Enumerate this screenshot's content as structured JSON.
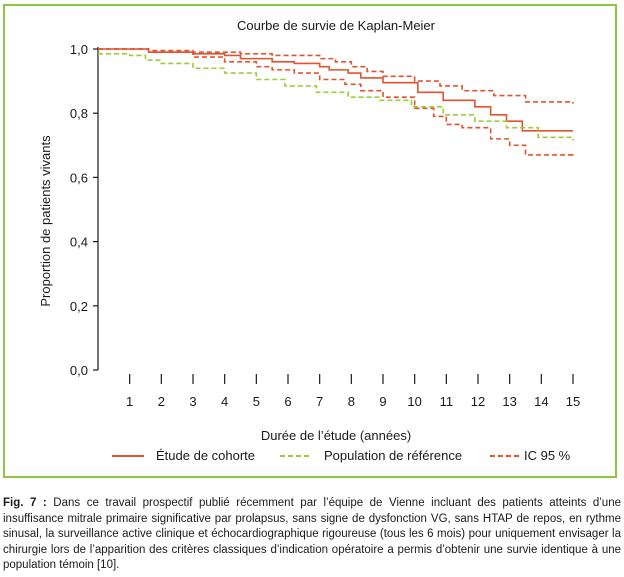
{
  "colors": {
    "frame": "#8dc63f",
    "cohort": "#e0532f",
    "reference": "#9ccc3a",
    "ci": "#e0532f",
    "axis": "#1a1a1a"
  },
  "chart_data": {
    "type": "line",
    "title": "Courbe de survie de Kaplan-Meier",
    "xlabel": "Durée de l’étude (années)",
    "ylabel": "Proportion de patients vivants",
    "xlim": [
      0,
      15
    ],
    "ylim": [
      0,
      1
    ],
    "x_ticks": [
      "1",
      "2",
      "3",
      "4",
      "5",
      "6",
      "7",
      "8",
      "9",
      "10",
      "11",
      "12",
      "13",
      "14",
      "15"
    ],
    "y_ticks": [
      "0,0",
      "0,2",
      "0,4",
      "0,6",
      "0,8",
      "1,0"
    ],
    "grid": false,
    "legend_position": "bottom",
    "series": [
      {
        "name": "Étude de cohorte",
        "style": "solid",
        "x": [
          0,
          1.3,
          1.6,
          3.0,
          4.0,
          4.5,
          5.5,
          6.2,
          7.0,
          7.3,
          7.9,
          8.3,
          9.0,
          10.1,
          10.9,
          11.9,
          12.4,
          12.9,
          13.4,
          15.0
        ],
        "y": [
          1.0,
          1.0,
          0.99,
          0.985,
          0.98,
          0.97,
          0.96,
          0.955,
          0.945,
          0.935,
          0.925,
          0.91,
          0.895,
          0.865,
          0.84,
          0.82,
          0.795,
          0.775,
          0.745,
          0.745
        ]
      },
      {
        "name": "Population de référence",
        "style": "dashed",
        "color_key": "reference",
        "x": [
          0,
          1.0,
          1.5,
          2.0,
          3.0,
          4.0,
          5.0,
          5.9,
          6.9,
          7.9,
          8.9,
          9.9,
          10.9,
          11.9,
          12.9,
          13.9,
          15.0
        ],
        "y": [
          0.985,
          0.98,
          0.965,
          0.955,
          0.94,
          0.925,
          0.905,
          0.885,
          0.865,
          0.85,
          0.84,
          0.82,
          0.795,
          0.775,
          0.755,
          0.725,
          0.715
        ]
      },
      {
        "name": "IC 95 %",
        "style": "dashed",
        "x": [
          0,
          1.3,
          1.6,
          3.0,
          4.5,
          5.5,
          7.0,
          7.5,
          8.0,
          8.5,
          9.0,
          10.0,
          10.8,
          11.5,
          12.5,
          13.5,
          15.0
        ],
        "y": [
          1.0,
          1.0,
          0.995,
          0.99,
          0.985,
          0.98,
          0.97,
          0.96,
          0.945,
          0.93,
          0.915,
          0.9,
          0.885,
          0.87,
          0.855,
          0.835,
          0.83
        ]
      },
      {
        "name": "IC 95 %",
        "style": "dashed",
        "x": [
          0,
          1.3,
          1.6,
          3.0,
          4.0,
          5.0,
          5.5,
          6.2,
          7.0,
          7.8,
          8.3,
          9.0,
          10.0,
          10.6,
          11.0,
          11.5,
          12.4,
          13.0,
          13.5,
          15.0
        ],
        "y": [
          1.0,
          1.0,
          0.99,
          0.975,
          0.96,
          0.945,
          0.935,
          0.925,
          0.905,
          0.89,
          0.87,
          0.85,
          0.815,
          0.79,
          0.765,
          0.755,
          0.72,
          0.7,
          0.67,
          0.665
        ]
      }
    ],
    "legend": [
      {
        "label": "Étude de cohorte",
        "style": "solid",
        "color_key": "cohort"
      },
      {
        "label": "Population de référence",
        "style": "dashed",
        "color_key": "reference"
      },
      {
        "label": "IC 95 %",
        "style": "dashed",
        "color_key": "ci"
      }
    ]
  },
  "caption": {
    "label": "Fig. 7 :",
    "text": " Dans ce travail prospectif publié récemment par l’équipe de Vienne incluant des patients atteints d’une insuffisance mitrale primaire significative par prolapsus, sans signe de dysfonction VG, sans HTAP de repos, en rythme sinusal, la surveillance active clinique et échocardiographique rigoureuse (tous les 6 mois) pour uniquement envisager la chirurgie lors de l’apparition des critères classiques d’indication opératoire a permis d’obtenir une survie identique à une population témoin [10]."
  }
}
